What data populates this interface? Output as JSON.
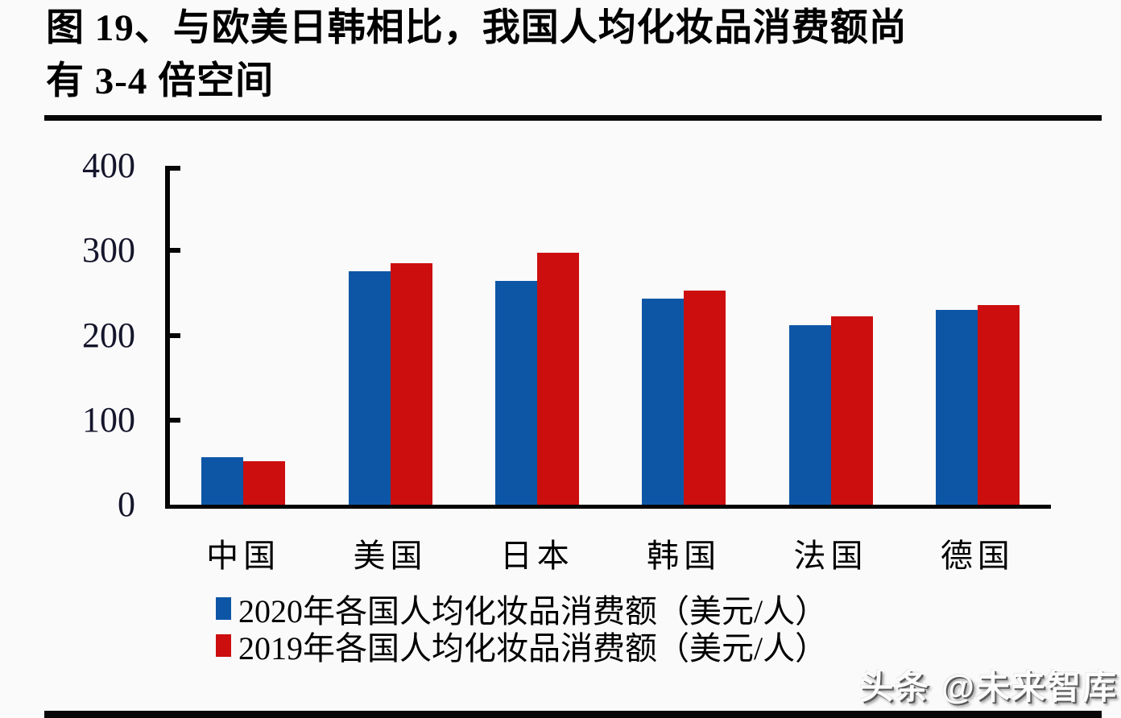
{
  "figure": {
    "title_line1": "图 19、与欧美日韩相比，我国人均化妆品消费额尚",
    "title_line2": "有 3-4 倍空间"
  },
  "watermark": "头条 @未来智库",
  "colors": {
    "series_2020": "#0D56A6",
    "series_2019": "#CC0E0E",
    "axis": "#050505",
    "tick_label": "#15152b",
    "page_background": "#fafafb"
  },
  "chart_data": {
    "type": "bar",
    "categories": [
      "中国",
      "美国",
      "日本",
      "韩国",
      "法国",
      "德国"
    ],
    "series": [
      {
        "name": "2020年各国人均化妆品消费额（美元/人）",
        "color": "#0D56A6",
        "values": [
          56,
          276,
          264,
          243,
          212,
          230
        ]
      },
      {
        "name": "2019年各国人均化妆品消费额（美元/人）",
        "color": "#CC0E0E",
        "values": [
          51,
          285,
          297,
          253,
          222,
          236
        ]
      }
    ],
    "title": "图 19、与欧美日韩相比，我国人均化妆品消费额尚有 3-4 倍空间",
    "xlabel": "",
    "ylabel": "",
    "ylim": [
      0,
      400
    ],
    "yticks": [
      0,
      100,
      200,
      300,
      400
    ],
    "grid": false,
    "legend_position": "bottom"
  }
}
